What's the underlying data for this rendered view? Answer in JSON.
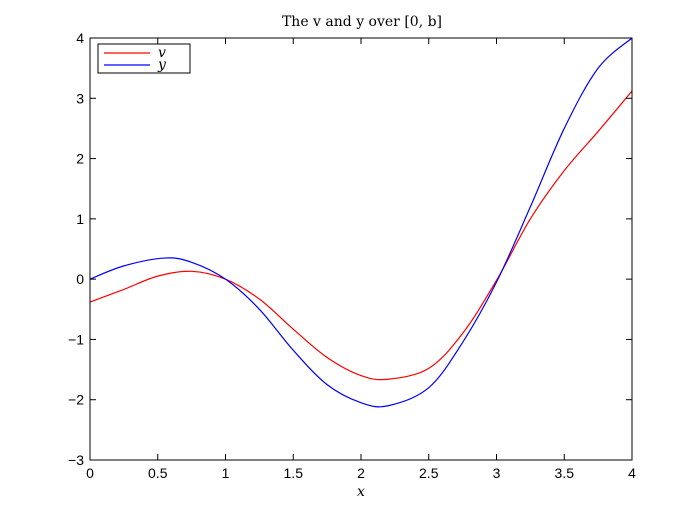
{
  "chart_data": {
    "type": "line",
    "title": "The v and y over [0, b]",
    "xlabel": "x",
    "ylabel": "",
    "xlim": [
      0,
      4
    ],
    "ylim": [
      -3,
      4
    ],
    "xticks": [
      0,
      0.5,
      1,
      1.5,
      2,
      2.5,
      3,
      3.5,
      4
    ],
    "xtick_labels": [
      "0",
      "0.5",
      "1",
      "1.5",
      "2",
      "2.5",
      "3",
      "3.5",
      "4"
    ],
    "yticks": [
      -3,
      -2,
      -1,
      0,
      1,
      2,
      3,
      4
    ],
    "ytick_labels": [
      "−3",
      "−2",
      "−1",
      "0",
      "1",
      "2",
      "3",
      "4"
    ],
    "grid": false,
    "legend_position": "top-left",
    "series": [
      {
        "name": "v",
        "color": "#ff0000",
        "x": [
          0,
          0.25,
          0.5,
          0.75,
          1.0,
          1.25,
          1.5,
          1.75,
          2.0,
          2.2,
          2.5,
          2.75,
          3.0,
          3.25,
          3.5,
          3.75,
          4.0
        ],
        "y": [
          -0.38,
          -0.17,
          0.05,
          0.13,
          0.0,
          -0.33,
          -0.83,
          -1.3,
          -1.6,
          -1.66,
          -1.48,
          -0.9,
          -0.02,
          1.0,
          1.8,
          2.45,
          3.12
        ]
      },
      {
        "name": "y",
        "color": "#0000ff",
        "x": [
          0,
          0.25,
          0.55,
          0.75,
          1.0,
          1.25,
          1.5,
          1.75,
          2.0,
          2.2,
          2.5,
          2.75,
          3.0,
          3.25,
          3.5,
          3.75,
          4.0
        ],
        "y": [
          0.0,
          0.22,
          0.35,
          0.28,
          0.0,
          -0.5,
          -1.18,
          -1.75,
          -2.05,
          -2.1,
          -1.8,
          -1.05,
          -0.05,
          1.2,
          2.5,
          3.5,
          4.0
        ]
      }
    ]
  }
}
